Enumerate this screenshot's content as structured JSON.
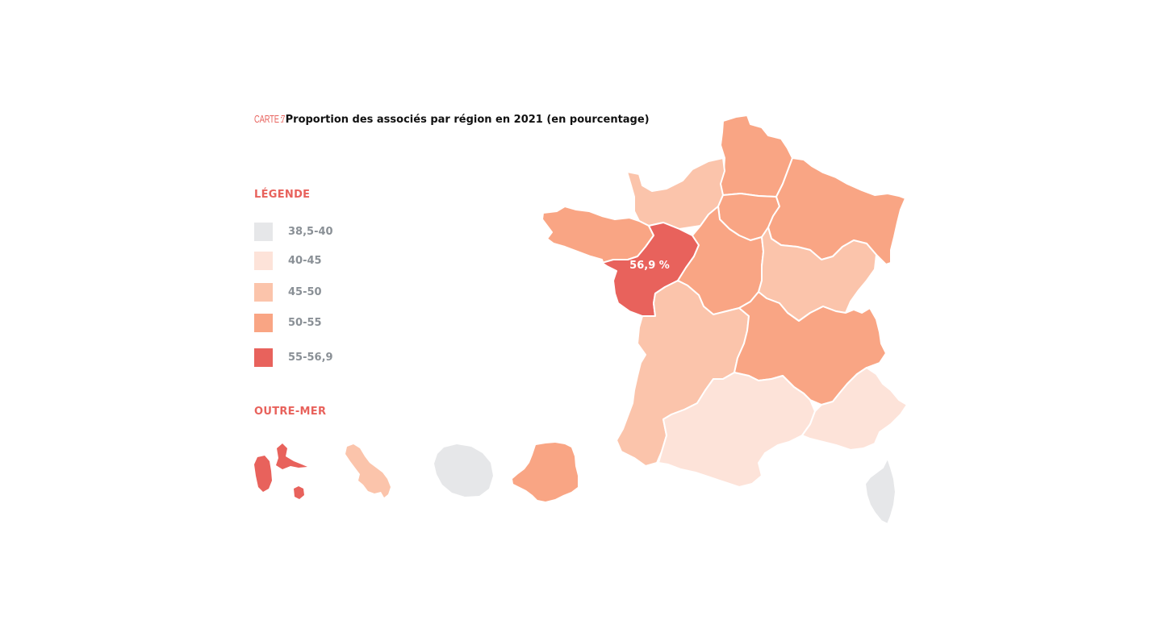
{
  "title": {
    "label": "CARTE 7",
    "separator": ":",
    "text": "Proportion des associés par région en 2021 (en pourcentage)"
  },
  "legend": {
    "heading": "LÉGENDE",
    "classes": [
      {
        "label": "38,5-40",
        "color": "#e6e7e9"
      },
      {
        "label": "40-45",
        "color": "#fde3d9"
      },
      {
        "label": "45-50",
        "color": "#fbc4ab"
      },
      {
        "label": "50-55",
        "color": "#f9a584"
      },
      {
        "label": "55-56,9",
        "color": "#e8625c"
      }
    ]
  },
  "overseas": {
    "heading": "OUTRE-MER",
    "territories": [
      {
        "name": "Guadeloupe",
        "class": "55-56,9"
      },
      {
        "name": "Martinique",
        "class": "45-50"
      },
      {
        "name": "La Réunion",
        "class": "38,5-40"
      },
      {
        "name": "Guyane",
        "class": "50-55"
      }
    ]
  },
  "map": {
    "regions": [
      {
        "name": "Hauts-de-France",
        "class": "50-55"
      },
      {
        "name": "Normandie",
        "class": "40-45"
      },
      {
        "name": "Île-de-France",
        "class": "50-55"
      },
      {
        "name": "Grand Est",
        "class": "50-55"
      },
      {
        "name": "Bretagne",
        "class": "50-55"
      },
      {
        "name": "Pays de la Loire",
        "class": "55-56,9",
        "value_label": "56,9 %"
      },
      {
        "name": "Centre-Val de Loire",
        "class": "50-55"
      },
      {
        "name": "Bourgogne-Franche-Comté",
        "class": "45-50"
      },
      {
        "name": "Nouvelle-Aquitaine",
        "class": "45-50"
      },
      {
        "name": "Auvergne-Rhône-Alpes",
        "class": "50-55"
      },
      {
        "name": "Occitanie",
        "class": "40-45"
      },
      {
        "name": "Provence-Alpes-Côte d'Azur",
        "class": "40-45"
      },
      {
        "name": "Corse",
        "class": "38,5-40"
      }
    ]
  }
}
